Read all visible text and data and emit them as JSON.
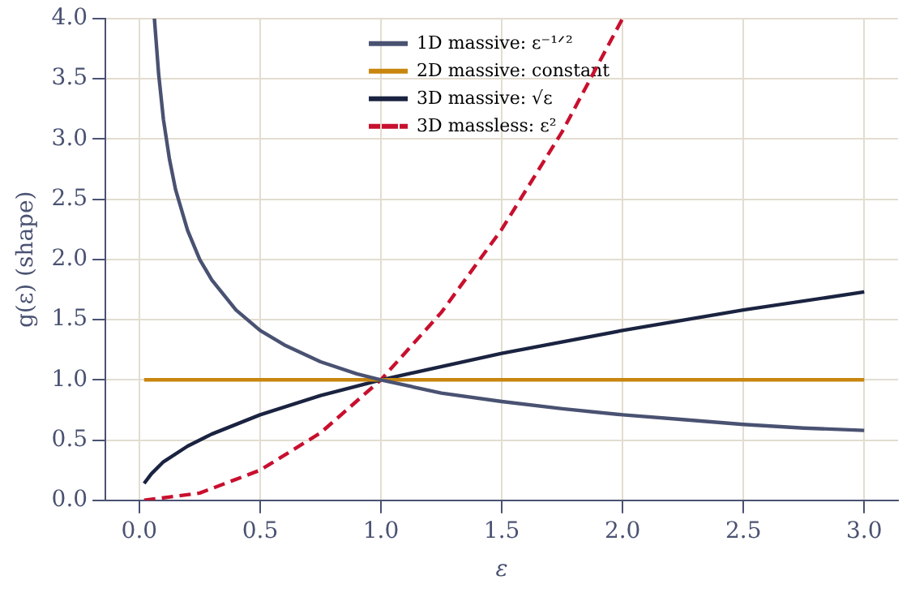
{
  "chart_data": {
    "type": "line",
    "xlabel": "ε",
    "ylabel": "g(ε) (shape)",
    "xlim": [
      -0.14,
      3.14
    ],
    "xticks": [
      {
        "value": 0,
        "label": "0.0"
      },
      {
        "value": 0.5,
        "label": "0.5"
      },
      {
        "value": 1,
        "label": "1.0"
      },
      {
        "value": 1.5,
        "label": "1.5"
      },
      {
        "value": 2,
        "label": "2.0"
      },
      {
        "value": 2.5,
        "label": "2.5"
      },
      {
        "value": 3,
        "label": "3.0"
      }
    ],
    "ylim": [
      0,
      4
    ],
    "yticks": [
      {
        "value": 0,
        "label": "0.0"
      },
      {
        "value": 0.5,
        "label": "0.5"
      },
      {
        "value": 1,
        "label": "1.0"
      },
      {
        "value": 1.5,
        "label": "1.5"
      },
      {
        "value": 2,
        "label": "2.0"
      },
      {
        "value": 2.5,
        "label": "2.5"
      },
      {
        "value": 3,
        "label": "3.0"
      },
      {
        "value": 3.5,
        "label": "3.5"
      },
      {
        "value": 4,
        "label": "4.0"
      }
    ],
    "grid": true,
    "legend": "top",
    "marker": "none",
    "series": [
      {
        "name": "1D massive: ε⁻¹ᐟ²",
        "color": "#4a5272",
        "x": [
          0.0625,
          0.08,
          0.1,
          0.125,
          0.15,
          0.2,
          0.25,
          0.3,
          0.4,
          0.5,
          0.6,
          0.75,
          0.9,
          1,
          1.25,
          1.5,
          1.75,
          2,
          2.25,
          2.5,
          2.75,
          3
        ],
        "values": [
          4,
          3.54,
          3.16,
          2.83,
          2.58,
          2.24,
          2,
          1.83,
          1.58,
          1.41,
          1.29,
          1.15,
          1.05,
          1,
          0.89,
          0.82,
          0.76,
          0.71,
          0.67,
          0.63,
          0.6,
          0.58
        ]
      },
      {
        "name": "2D massive: constant",
        "color": "#c8860f",
        "x": [
          0.02,
          3
        ],
        "values": [
          1,
          1
        ]
      },
      {
        "name": "3D massive: √ε",
        "color": "#1a2340",
        "x": [
          0.02,
          0.05,
          0.1,
          0.2,
          0.3,
          0.5,
          0.75,
          1,
          1.5,
          2,
          2.5,
          3
        ],
        "values": [
          0.14,
          0.22,
          0.32,
          0.45,
          0.55,
          0.71,
          0.87,
          1,
          1.22,
          1.41,
          1.58,
          1.73
        ]
      },
      {
        "name": "3D massless: ε²",
        "color": "#c8102e",
        "line_style": "dashed",
        "x": [
          0.02,
          0.25,
          0.5,
          0.75,
          1,
          1.25,
          1.5,
          1.75,
          2
        ],
        "values": [
          0,
          0.06,
          0.25,
          0.56,
          1,
          1.56,
          2.25,
          3.06,
          4
        ]
      }
    ]
  }
}
